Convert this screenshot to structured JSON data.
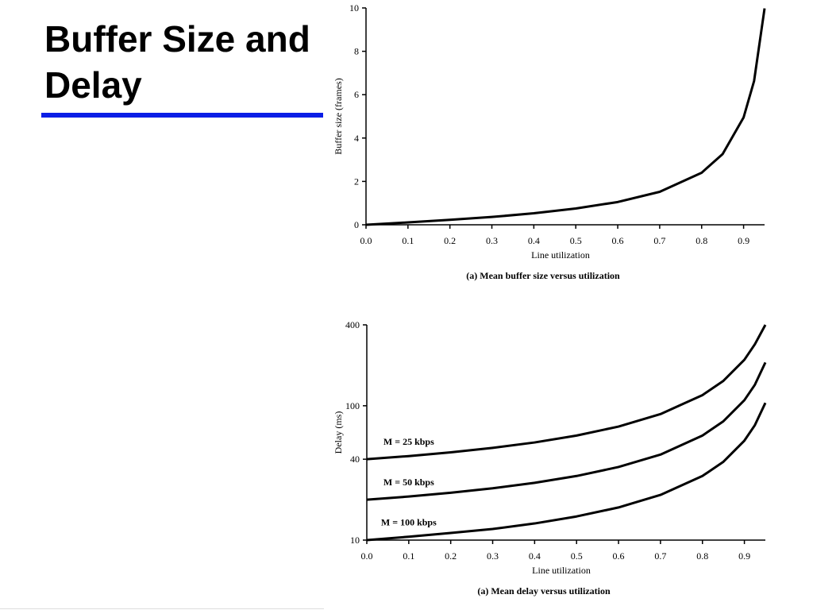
{
  "title": "Buffer Size and Delay",
  "chart_data": [
    {
      "type": "line",
      "caption": "(a) Mean buffer size versus utilization",
      "xlabel": "Line utilization",
      "ylabel": "Buffer size (frames)",
      "x": [
        0,
        0.1,
        0.2,
        0.3,
        0.4,
        0.5,
        0.6,
        0.7,
        0.8,
        0.85,
        0.9,
        0.925,
        0.95
      ],
      "series": [
        {
          "color": "#000000",
          "values": [
            0,
            0.11,
            0.23,
            0.36,
            0.53,
            0.75,
            1.05,
            1.52,
            2.4,
            3.26,
            4.95,
            6.63,
            9.98
          ]
        }
      ],
      "xlim": [
        0,
        0.95
      ],
      "xticks": [
        {
          "value": 0,
          "label": "0.0"
        },
        0.1,
        0.2,
        0.3,
        0.4,
        0.5,
        0.6,
        0.7,
        0.8,
        0.9
      ],
      "ylim": [
        0,
        10
      ],
      "yticks": [
        0,
        2,
        4,
        6,
        8,
        10
      ]
    },
    {
      "type": "line",
      "caption": "(a) Mean delay versus utilization",
      "xlabel": "Line utilization",
      "ylabel": "Delay (ms)",
      "log_y": true,
      "x": [
        0,
        0.1,
        0.2,
        0.3,
        0.4,
        0.5,
        0.6,
        0.7,
        0.8,
        0.85,
        0.9,
        0.925,
        0.95
      ],
      "series": [
        {
          "name": "M = 25 kbps",
          "color": "#000000",
          "values": [
            40,
            42.2,
            45,
            48.6,
            53.3,
            60,
            70,
            86.7,
            120,
            153.3,
            220,
            286.7,
            400
          ]
        },
        {
          "name": "M = 50 kbps",
          "color": "#000000",
          "values": [
            20,
            21.1,
            22.5,
            24.3,
            26.7,
            30,
            35,
            43.3,
            60,
            76.7,
            110,
            143.3,
            210
          ]
        },
        {
          "name": "M = 100 kbps",
          "color": "#000000",
          "values": [
            10,
            10.6,
            11.3,
            12.1,
            13.3,
            15,
            17.5,
            21.7,
            30,
            38.3,
            55,
            71.7,
            105
          ]
        }
      ],
      "xlim": [
        0,
        0.95
      ],
      "xticks": [
        {
          "value": 0,
          "label": "0.0"
        },
        0.1,
        0.2,
        0.3,
        0.4,
        0.5,
        0.6,
        0.7,
        0.8,
        0.9
      ],
      "ylim": [
        10,
        400
      ],
      "yticks": [
        10,
        40,
        100,
        400
      ]
    }
  ]
}
